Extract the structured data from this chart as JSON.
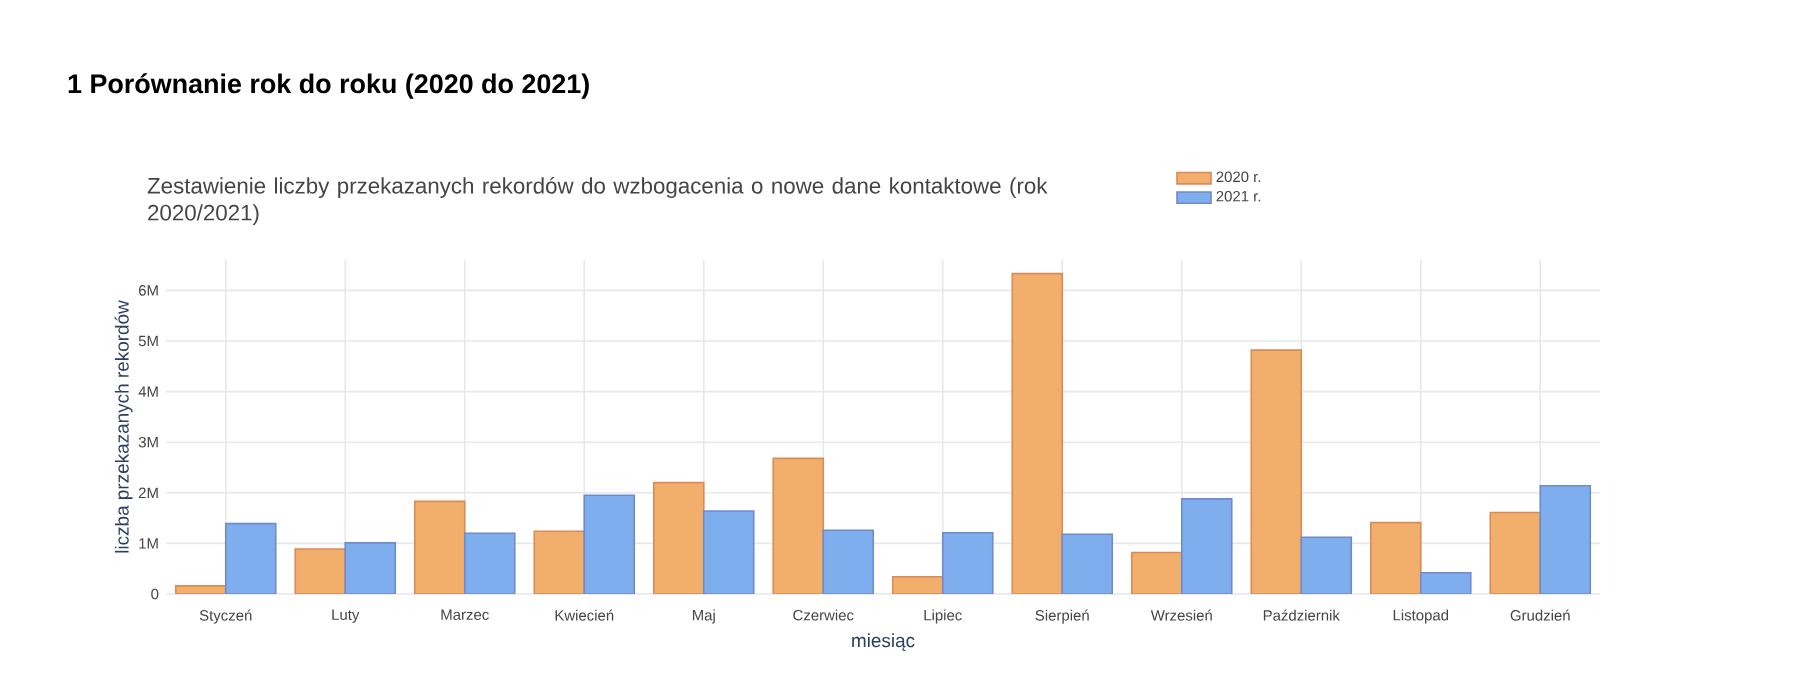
{
  "chart_data": {
    "type": "bar",
    "title": "1  Porównanie rok do roku (2020 do 2021)",
    "subtitle": "Zestawienie liczby przekazanych rekordów do wzbogacenia o nowe dane kontaktowe (rok 2020/2021)",
    "xlabel": "miesiąc",
    "ylabel": "liczba przekazanych rekordów",
    "categories": [
      "Styczeń",
      "Luty",
      "Marzec",
      "Kwiecień",
      "Maj",
      "Czerwiec",
      "Lipiec",
      "Sierpień",
      "Wrzesień",
      "Październik",
      "Listopad",
      "Grudzień"
    ],
    "series": [
      {
        "name": "2020 r.",
        "color": "#f2ae6b",
        "values": [
          160000,
          890000,
          1830000,
          1240000,
          2200000,
          2680000,
          340000,
          6330000,
          820000,
          4820000,
          1410000,
          1610000
        ]
      },
      {
        "name": "2021 r.",
        "color": "#7eaeee",
        "values": [
          1390000,
          1010000,
          1200000,
          1950000,
          1640000,
          1260000,
          1210000,
          1180000,
          1880000,
          1120000,
          420000,
          2140000
        ]
      }
    ],
    "ylim": [
      0,
      6600000
    ],
    "yticks": [
      0,
      {
        "value": 1000000,
        "label": "1M"
      },
      {
        "value": 2000000,
        "label": "2M"
      },
      {
        "value": 3000000,
        "label": "3M"
      },
      {
        "value": 4000000,
        "label": "4M"
      },
      {
        "value": 5000000,
        "label": "5M"
      },
      {
        "value": 6000000,
        "label": "6M"
      }
    ],
    "grid": true,
    "legend": "top right"
  }
}
